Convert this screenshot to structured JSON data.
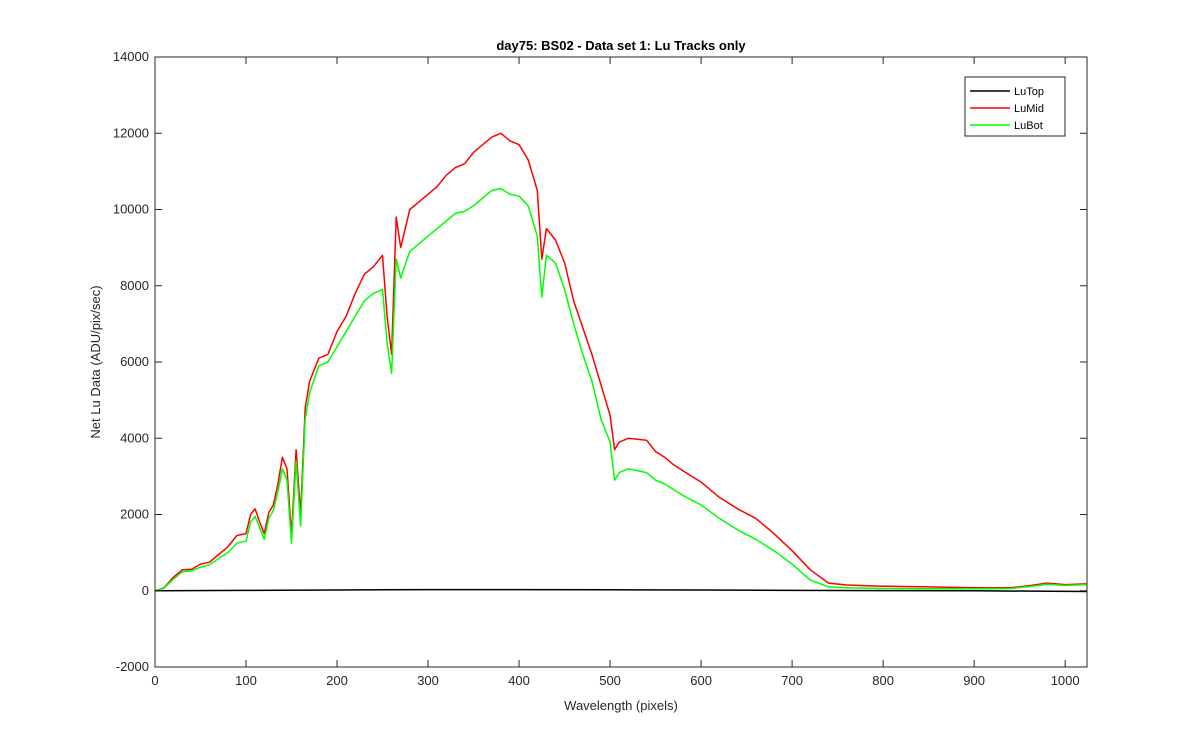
{
  "chart_data": {
    "type": "line",
    "title": "day75: BS02 - Data set 1: Lu Tracks only",
    "xlabel": "Wavelength (pixels)",
    "ylabel": "Net Lu Data (ADU/pix/sec)",
    "xlim": [
      0,
      1024
    ],
    "ylim": [
      -2000,
      14000
    ],
    "xticks": [
      0,
      100,
      200,
      300,
      400,
      500,
      600,
      700,
      800,
      900,
      1000
    ],
    "yticks": [
      -2000,
      0,
      2000,
      4000,
      6000,
      8000,
      10000,
      12000,
      14000
    ],
    "legend_position": "top-right",
    "grid": false,
    "series": [
      {
        "name": "LuTop",
        "color": "#000000",
        "points": [
          [
            0,
            0
          ],
          [
            100,
            10
          ],
          [
            200,
            20
          ],
          [
            300,
            30
          ],
          [
            400,
            30
          ],
          [
            500,
            25
          ],
          [
            600,
            20
          ],
          [
            700,
            10
          ],
          [
            800,
            5
          ],
          [
            900,
            0
          ],
          [
            1024,
            -20
          ]
        ]
      },
      {
        "name": "LuMid",
        "color": "#ff0000",
        "points": [
          [
            0,
            0
          ],
          [
            10,
            80
          ],
          [
            20,
            350
          ],
          [
            30,
            550
          ],
          [
            40,
            560
          ],
          [
            50,
            700
          ],
          [
            60,
            750
          ],
          [
            70,
            950
          ],
          [
            80,
            1150
          ],
          [
            90,
            1450
          ],
          [
            100,
            1500
          ],
          [
            105,
            2000
          ],
          [
            110,
            2150
          ],
          [
            115,
            1800
          ],
          [
            120,
            1500
          ],
          [
            125,
            2050
          ],
          [
            130,
            2250
          ],
          [
            135,
            2800
          ],
          [
            140,
            3500
          ],
          [
            145,
            3200
          ],
          [
            150,
            1450
          ],
          [
            155,
            3700
          ],
          [
            160,
            2000
          ],
          [
            165,
            4800
          ],
          [
            170,
            5500
          ],
          [
            180,
            6100
          ],
          [
            190,
            6200
          ],
          [
            200,
            6800
          ],
          [
            210,
            7200
          ],
          [
            220,
            7800
          ],
          [
            230,
            8300
          ],
          [
            240,
            8500
          ],
          [
            250,
            8800
          ],
          [
            255,
            7200
          ],
          [
            260,
            6200
          ],
          [
            265,
            9800
          ],
          [
            270,
            9000
          ],
          [
            280,
            10000
          ],
          [
            290,
            10200
          ],
          [
            300,
            10400
          ],
          [
            310,
            10600
          ],
          [
            320,
            10900
          ],
          [
            330,
            11100
          ],
          [
            340,
            11200
          ],
          [
            350,
            11500
          ],
          [
            360,
            11700
          ],
          [
            370,
            11900
          ],
          [
            380,
            12000
          ],
          [
            390,
            11800
          ],
          [
            400,
            11700
          ],
          [
            410,
            11300
          ],
          [
            420,
            10500
          ],
          [
            425,
            8700
          ],
          [
            430,
            9500
          ],
          [
            440,
            9200
          ],
          [
            450,
            8600
          ],
          [
            460,
            7600
          ],
          [
            470,
            6900
          ],
          [
            480,
            6200
          ],
          [
            490,
            5400
          ],
          [
            500,
            4600
          ],
          [
            505,
            3700
          ],
          [
            510,
            3900
          ],
          [
            520,
            4000
          ],
          [
            540,
            3950
          ],
          [
            550,
            3650
          ],
          [
            560,
            3500
          ],
          [
            570,
            3300
          ],
          [
            580,
            3150
          ],
          [
            600,
            2850
          ],
          [
            620,
            2450
          ],
          [
            640,
            2150
          ],
          [
            660,
            1900
          ],
          [
            680,
            1500
          ],
          [
            700,
            1050
          ],
          [
            720,
            550
          ],
          [
            740,
            200
          ],
          [
            760,
            150
          ],
          [
            800,
            120
          ],
          [
            850,
            100
          ],
          [
            900,
            80
          ],
          [
            940,
            80
          ],
          [
            960,
            130
          ],
          [
            980,
            200
          ],
          [
            1000,
            160
          ],
          [
            1024,
            180
          ]
        ]
      },
      {
        "name": "LuBot",
        "color": "#00ff00",
        "points": [
          [
            0,
            0
          ],
          [
            10,
            70
          ],
          [
            20,
            300
          ],
          [
            30,
            500
          ],
          [
            40,
            520
          ],
          [
            50,
            620
          ],
          [
            60,
            680
          ],
          [
            70,
            850
          ],
          [
            80,
            1000
          ],
          [
            90,
            1250
          ],
          [
            100,
            1300
          ],
          [
            105,
            1800
          ],
          [
            110,
            1950
          ],
          [
            115,
            1650
          ],
          [
            120,
            1350
          ],
          [
            125,
            1900
          ],
          [
            130,
            2100
          ],
          [
            135,
            2600
          ],
          [
            140,
            3200
          ],
          [
            145,
            2900
          ],
          [
            150,
            1250
          ],
          [
            155,
            3400
          ],
          [
            160,
            1700
          ],
          [
            165,
            4500
          ],
          [
            170,
            5200
          ],
          [
            180,
            5900
          ],
          [
            190,
            6000
          ],
          [
            200,
            6400
          ],
          [
            210,
            6800
          ],
          [
            220,
            7200
          ],
          [
            230,
            7600
          ],
          [
            240,
            7800
          ],
          [
            250,
            7900
          ],
          [
            255,
            6500
          ],
          [
            260,
            5700
          ],
          [
            265,
            8700
          ],
          [
            270,
            8200
          ],
          [
            280,
            8900
          ],
          [
            290,
            9100
          ],
          [
            300,
            9300
          ],
          [
            310,
            9500
          ],
          [
            320,
            9700
          ],
          [
            330,
            9900
          ],
          [
            340,
            9950
          ],
          [
            350,
            10100
          ],
          [
            360,
            10300
          ],
          [
            370,
            10500
          ],
          [
            380,
            10550
          ],
          [
            390,
            10400
          ],
          [
            400,
            10350
          ],
          [
            410,
            10100
          ],
          [
            420,
            9300
          ],
          [
            425,
            7700
          ],
          [
            430,
            8800
          ],
          [
            440,
            8600
          ],
          [
            450,
            7900
          ],
          [
            460,
            7000
          ],
          [
            470,
            6200
          ],
          [
            480,
            5500
          ],
          [
            490,
            4500
          ],
          [
            500,
            3900
          ],
          [
            505,
            2900
          ],
          [
            510,
            3100
          ],
          [
            520,
            3200
          ],
          [
            540,
            3100
          ],
          [
            550,
            2900
          ],
          [
            560,
            2800
          ],
          [
            570,
            2650
          ],
          [
            580,
            2500
          ],
          [
            600,
            2250
          ],
          [
            620,
            1900
          ],
          [
            640,
            1600
          ],
          [
            660,
            1350
          ],
          [
            680,
            1050
          ],
          [
            700,
            700
          ],
          [
            720,
            280
          ],
          [
            740,
            100
          ],
          [
            760,
            80
          ],
          [
            800,
            60
          ],
          [
            850,
            50
          ],
          [
            900,
            50
          ],
          [
            940,
            60
          ],
          [
            960,
            110
          ],
          [
            980,
            170
          ],
          [
            1000,
            140
          ],
          [
            1024,
            160
          ]
        ]
      }
    ]
  }
}
